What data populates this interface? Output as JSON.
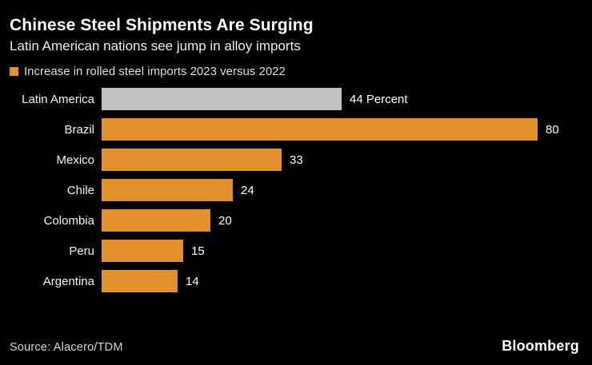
{
  "title": "Chinese Steel Shipments Are Surging",
  "subtitle": "Latin American nations see jump in alloy imports",
  "legend": {
    "label": "Increase in rolled steel imports 2023 versus 2022"
  },
  "source": "Source: Alacero/TDM",
  "brand": "Bloomberg",
  "colors": {
    "background": "#000000",
    "bar_orange": "#E2902C",
    "bar_gray": "#C2C2C2",
    "title_text": "#FFFFFF",
    "muted_text": "#DCDCDC"
  },
  "chart_data": {
    "type": "bar",
    "orientation": "horizontal",
    "title": "Chinese Steel Shipments Are Surging",
    "subtitle": "Latin American nations see jump in alloy imports",
    "legend_entries": [
      "Increase in rolled steel imports 2023 versus 2022"
    ],
    "unit": "Percent",
    "xlim": [
      0,
      80
    ],
    "grid": false,
    "categories": [
      "Latin America",
      "Brazil",
      "Mexico",
      "Chile",
      "Colombia",
      "Peru",
      "Argentina"
    ],
    "values": [
      44,
      80,
      33,
      24,
      20,
      15,
      14
    ],
    "value_labels": [
      "44 Percent",
      "80",
      "33",
      "24",
      "20",
      "15",
      "14"
    ],
    "bar_color_keys": [
      "bar_gray",
      "bar_orange",
      "bar_orange",
      "bar_orange",
      "bar_orange",
      "bar_orange",
      "bar_orange"
    ]
  }
}
